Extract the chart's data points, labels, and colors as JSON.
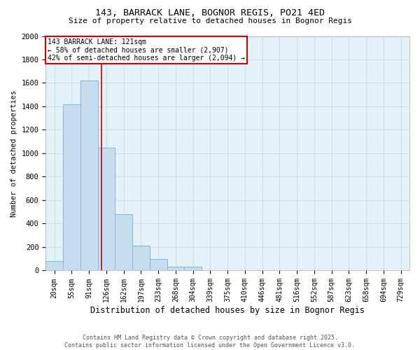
{
  "title1": "143, BARRACK LANE, BOGNOR REGIS, PO21 4ED",
  "title2": "Size of property relative to detached houses in Bognor Regis",
  "xlabel": "Distribution of detached houses by size in Bognor Regis",
  "ylabel": "Number of detached properties",
  "categories": [
    "20sqm",
    "55sqm",
    "91sqm",
    "126sqm",
    "162sqm",
    "197sqm",
    "233sqm",
    "268sqm",
    "304sqm",
    "339sqm",
    "375sqm",
    "410sqm",
    "446sqm",
    "481sqm",
    "516sqm",
    "552sqm",
    "587sqm",
    "623sqm",
    "658sqm",
    "694sqm",
    "729sqm"
  ],
  "values": [
    80,
    1420,
    1620,
    1050,
    480,
    210,
    100,
    30,
    30,
    0,
    0,
    0,
    0,
    0,
    0,
    0,
    0,
    0,
    0,
    0,
    0
  ],
  "bar_color": "#c6ddf0",
  "bar_edge_color": "#7db8d8",
  "grid_color": "#c8dff0",
  "background_color": "#e4f1f9",
  "vline_x_index": 2.72,
  "vline_color": "#cc0000",
  "annotation_text": "143 BARRACK LANE: 121sqm\n← 58% of detached houses are smaller (2,907)\n42% of semi-detached houses are larger (2,094) →",
  "annotation_box_color": "#cc0000",
  "ylim": [
    0,
    2000
  ],
  "yticks": [
    0,
    200,
    400,
    600,
    800,
    1000,
    1200,
    1400,
    1600,
    1800,
    2000
  ],
  "footer1": "Contains HM Land Registry data © Crown copyright and database right 2025.",
  "footer2": "Contains public sector information licensed under the Open Government Licence v3.0."
}
